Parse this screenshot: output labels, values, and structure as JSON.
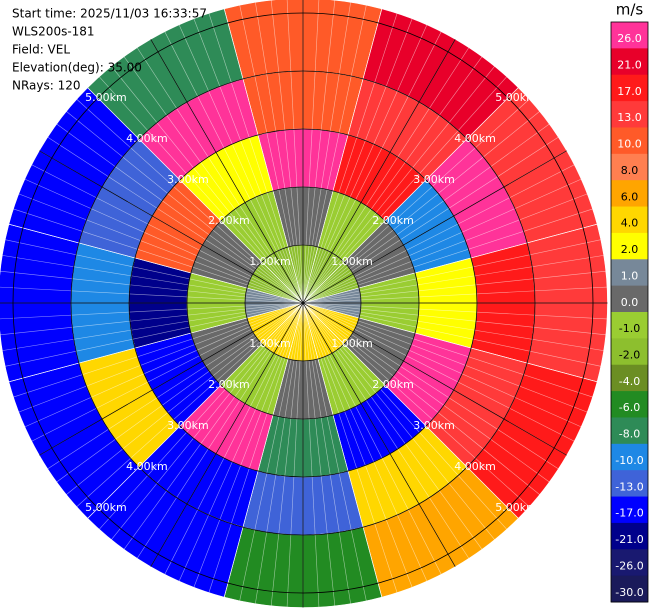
{
  "chart_data": {
    "type": "ppi",
    "info": [
      "Start time: 2025/11/03 16:33:57",
      "WLS200s-181",
      "Field: VEL",
      "Elevation(deg): 35.00",
      "NRays: 120"
    ],
    "range_rings": [
      {
        "value": 1,
        "label": "1.00km"
      },
      {
        "value": 2,
        "label": "2.00km"
      },
      {
        "value": 3,
        "label": "3.00km"
      },
      {
        "value": 4,
        "label": "4.00km"
      },
      {
        "value": 5,
        "label": "5.00km"
      }
    ],
    "azimuths": [
      0,
      30,
      60,
      90,
      120,
      150,
      180,
      210,
      240,
      270,
      300,
      330
    ],
    "range_bins": [
      0,
      1,
      2,
      3,
      4,
      5.25
    ],
    "field": {
      "values": [
        [
          -2,
          0,
          26,
          10,
          10
        ],
        [
          -2,
          -1,
          17,
          13,
          21
        ],
        [
          -2,
          0,
          -10,
          26,
          13
        ],
        [
          1,
          -1,
          2,
          17,
          13
        ],
        [
          4,
          0,
          26,
          13,
          17
        ],
        [
          4,
          -1,
          -17,
          4,
          6
        ],
        [
          4,
          0,
          -8,
          -13,
          -6
        ],
        [
          4,
          -1,
          26,
          -17,
          -17
        ],
        [
          4,
          0,
          -17,
          4,
          -17
        ],
        [
          1,
          -1,
          -21,
          -10,
          -17
        ],
        [
          -2,
          0,
          10,
          -13,
          -17
        ],
        [
          -2,
          -1,
          2,
          26,
          -8
        ]
      ]
    },
    "colorbar": {
      "title": "m/s",
      "levels": [
        {
          "value": 26,
          "label": "26.0"
        },
        {
          "value": 21,
          "label": "21.0"
        },
        {
          "value": 17,
          "label": "17.0"
        },
        {
          "value": 13,
          "label": "13.0"
        },
        {
          "value": 10,
          "label": "10.0"
        },
        {
          "value": 8,
          "label": "8.0"
        },
        {
          "value": 6,
          "label": "6.0"
        },
        {
          "value": 4,
          "label": "4.0"
        },
        {
          "value": 2,
          "label": "2.0"
        },
        {
          "value": 1,
          "label": "1.0"
        },
        {
          "value": 0,
          "label": "0.0"
        },
        {
          "value": -1,
          "label": "-1.0"
        },
        {
          "value": -2,
          "label": "-2.0"
        },
        {
          "value": -4,
          "label": "-4.0"
        },
        {
          "value": -6,
          "label": "-6.0"
        },
        {
          "value": -8,
          "label": "-8.0"
        },
        {
          "value": -10,
          "label": "-10.0"
        },
        {
          "value": -13,
          "label": "-13.0"
        },
        {
          "value": -17,
          "label": "-17.0"
        },
        {
          "value": -21,
          "label": "-21.0"
        },
        {
          "value": -26,
          "label": "-26.0"
        },
        {
          "value": -30,
          "label": "-30.0"
        }
      ],
      "colors": [
        "#ff3399",
        "#e8002a",
        "#ff1a1a",
        "#ff3a3a",
        "#ff5a28",
        "#ff7f50",
        "#ffa500",
        "#ffd700",
        "#ffff00",
        "#778899",
        "#696969",
        "#9acd32",
        "#8dbf2e",
        "#6b8e23",
        "#228b22",
        "#2e8b57",
        "#1e88e5",
        "#3f63d8",
        "#0000ff",
        "#00008b",
        "#191970",
        "#1a1a5a"
      ]
    }
  }
}
